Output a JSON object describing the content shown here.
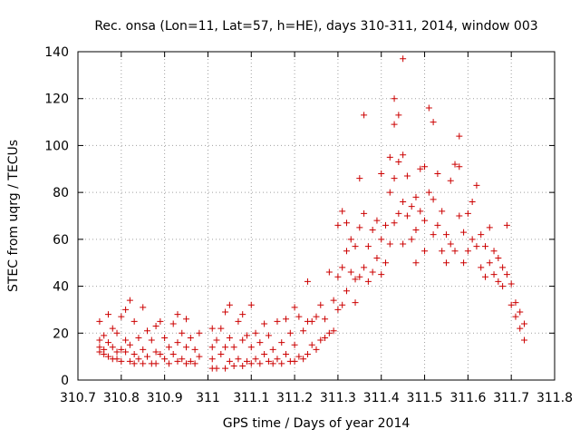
{
  "chart_data": {
    "type": "scatter",
    "title": "Rec. onsa (Lon=11, Lat=57, h=HE), days 310-311, 2014, window 003",
    "xlabel": "GPS time / Days of year 2014",
    "ylabel": "STEC from uqrg / TECUs",
    "xlim": [
      310.7,
      311.8
    ],
    "ylim": [
      0,
      140
    ],
    "grid": true,
    "marker": "+",
    "series_color": "#cc0000",
    "x_ticks": [
      "310.7",
      "310.8",
      "310.9",
      "311",
      "311.1",
      "311.2",
      "311.3",
      "311.4",
      "311.5",
      "311.6",
      "311.7",
      "311.8"
    ],
    "x_tick_values": [
      310.7,
      310.8,
      310.9,
      311.0,
      311.1,
      311.2,
      311.3,
      311.4,
      311.5,
      311.6,
      311.7,
      311.8
    ],
    "y_ticks": [
      "0",
      "20",
      "40",
      "60",
      "80",
      "100",
      "120",
      "140"
    ],
    "y_tick_values": [
      0,
      20,
      40,
      60,
      80,
      100,
      120,
      140
    ],
    "points": [
      [
        310.75,
        25
      ],
      [
        310.75,
        17
      ],
      [
        310.75,
        14
      ],
      [
        310.75,
        12
      ],
      [
        310.76,
        19
      ],
      [
        310.76,
        13
      ],
      [
        310.76,
        11
      ],
      [
        310.77,
        28
      ],
      [
        310.77,
        16
      ],
      [
        310.77,
        10
      ],
      [
        310.78,
        22
      ],
      [
        310.78,
        14
      ],
      [
        310.78,
        9
      ],
      [
        310.79,
        20
      ],
      [
        310.79,
        12
      ],
      [
        310.79,
        9
      ],
      [
        310.8,
        27
      ],
      [
        310.8,
        13
      ],
      [
        310.8,
        8
      ],
      [
        310.81,
        30
      ],
      [
        310.81,
        17
      ],
      [
        310.81,
        12
      ],
      [
        310.82,
        34
      ],
      [
        310.82,
        15
      ],
      [
        310.82,
        8
      ],
      [
        310.83,
        25
      ],
      [
        310.83,
        11
      ],
      [
        310.83,
        7
      ],
      [
        310.84,
        18
      ],
      [
        310.84,
        9
      ],
      [
        310.85,
        31
      ],
      [
        310.85,
        13
      ],
      [
        310.85,
        7
      ],
      [
        310.86,
        21
      ],
      [
        310.86,
        10
      ],
      [
        310.87,
        17
      ],
      [
        310.87,
        7
      ],
      [
        310.88,
        23
      ],
      [
        310.88,
        12
      ],
      [
        310.88,
        7
      ],
      [
        310.89,
        25
      ],
      [
        310.89,
        11
      ],
      [
        310.9,
        18
      ],
      [
        310.9,
        9
      ],
      [
        310.91,
        14
      ],
      [
        310.91,
        7
      ],
      [
        310.92,
        24
      ],
      [
        310.92,
        11
      ],
      [
        310.93,
        28
      ],
      [
        310.93,
        16
      ],
      [
        310.93,
        8
      ],
      [
        310.94,
        20
      ],
      [
        310.94,
        9
      ],
      [
        310.95,
        26
      ],
      [
        310.95,
        14
      ],
      [
        310.95,
        7
      ],
      [
        310.96,
        18
      ],
      [
        310.96,
        8
      ],
      [
        310.97,
        13
      ],
      [
        310.97,
        7
      ],
      [
        310.98,
        20
      ],
      [
        310.98,
        10
      ],
      [
        311.01,
        22
      ],
      [
        311.01,
        14
      ],
      [
        311.01,
        9
      ],
      [
        311.01,
        5
      ],
      [
        311.02,
        17
      ],
      [
        311.02,
        5
      ],
      [
        311.03,
        22
      ],
      [
        311.03,
        11
      ],
      [
        311.04,
        29
      ],
      [
        311.04,
        14
      ],
      [
        311.04,
        5
      ],
      [
        311.05,
        32
      ],
      [
        311.05,
        18
      ],
      [
        311.05,
        8
      ],
      [
        311.06,
        14
      ],
      [
        311.06,
        6
      ],
      [
        311.07,
        25
      ],
      [
        311.07,
        9
      ],
      [
        311.08,
        28
      ],
      [
        311.08,
        17
      ],
      [
        311.08,
        6
      ],
      [
        311.09,
        19
      ],
      [
        311.09,
        8
      ],
      [
        311.1,
        32
      ],
      [
        311.1,
        14
      ],
      [
        311.1,
        7
      ],
      [
        311.11,
        20
      ],
      [
        311.11,
        9
      ],
      [
        311.12,
        16
      ],
      [
        311.12,
        7
      ],
      [
        311.13,
        24
      ],
      [
        311.13,
        11
      ],
      [
        311.14,
        19
      ],
      [
        311.14,
        8
      ],
      [
        311.15,
        13
      ],
      [
        311.15,
        7
      ],
      [
        311.16,
        25
      ],
      [
        311.16,
        9
      ],
      [
        311.17,
        16
      ],
      [
        311.17,
        7
      ],
      [
        311.18,
        26
      ],
      [
        311.18,
        11
      ],
      [
        311.19,
        20
      ],
      [
        311.19,
        8
      ],
      [
        311.2,
        31
      ],
      [
        311.2,
        15
      ],
      [
        311.2,
        8
      ],
      [
        311.21,
        27
      ],
      [
        311.21,
        10
      ],
      [
        311.22,
        21
      ],
      [
        311.22,
        9
      ],
      [
        311.23,
        42
      ],
      [
        311.23,
        25
      ],
      [
        311.23,
        11
      ],
      [
        311.24,
        25
      ],
      [
        311.24,
        15
      ],
      [
        311.25,
        27
      ],
      [
        311.25,
        13
      ],
      [
        311.26,
        32
      ],
      [
        311.26,
        17
      ],
      [
        311.27,
        26
      ],
      [
        311.27,
        18
      ],
      [
        311.28,
        46
      ],
      [
        311.28,
        20
      ],
      [
        311.29,
        34
      ],
      [
        311.29,
        21
      ],
      [
        311.3,
        66
      ],
      [
        311.3,
        44
      ],
      [
        311.3,
        30
      ],
      [
        311.31,
        72
      ],
      [
        311.31,
        48
      ],
      [
        311.31,
        32
      ],
      [
        311.32,
        67
      ],
      [
        311.32,
        55
      ],
      [
        311.32,
        38
      ],
      [
        311.33,
        60
      ],
      [
        311.33,
        46
      ],
      [
        311.34,
        57
      ],
      [
        311.34,
        43
      ],
      [
        311.34,
        33
      ],
      [
        311.35,
        86
      ],
      [
        311.35,
        65
      ],
      [
        311.35,
        44
      ],
      [
        311.36,
        113
      ],
      [
        311.36,
        71
      ],
      [
        311.36,
        48
      ],
      [
        311.37,
        57
      ],
      [
        311.37,
        42
      ],
      [
        311.38,
        64
      ],
      [
        311.38,
        46
      ],
      [
        311.39,
        68
      ],
      [
        311.39,
        52
      ],
      [
        311.4,
        88
      ],
      [
        311.4,
        60
      ],
      [
        311.4,
        45
      ],
      [
        311.41,
        66
      ],
      [
        311.41,
        50
      ],
      [
        311.42,
        95
      ],
      [
        311.42,
        80
      ],
      [
        311.42,
        58
      ],
      [
        311.43,
        120
      ],
      [
        311.43,
        109
      ],
      [
        311.43,
        86
      ],
      [
        311.43,
        67
      ],
      [
        311.44,
        113
      ],
      [
        311.44,
        93
      ],
      [
        311.44,
        71
      ],
      [
        311.45,
        137
      ],
      [
        311.45,
        96
      ],
      [
        311.45,
        76
      ],
      [
        311.45,
        58
      ],
      [
        311.46,
        87
      ],
      [
        311.46,
        70
      ],
      [
        311.47,
        74
      ],
      [
        311.47,
        60
      ],
      [
        311.48,
        78
      ],
      [
        311.48,
        64
      ],
      [
        311.48,
        50
      ],
      [
        311.49,
        90
      ],
      [
        311.49,
        72
      ],
      [
        311.5,
        91
      ],
      [
        311.5,
        68
      ],
      [
        311.5,
        55
      ],
      [
        311.51,
        116
      ],
      [
        311.51,
        80
      ],
      [
        311.52,
        110
      ],
      [
        311.52,
        77
      ],
      [
        311.52,
        62
      ],
      [
        311.53,
        88
      ],
      [
        311.53,
        66
      ],
      [
        311.54,
        72
      ],
      [
        311.54,
        55
      ],
      [
        311.55,
        62
      ],
      [
        311.55,
        50
      ],
      [
        311.56,
        85
      ],
      [
        311.56,
        58
      ],
      [
        311.57,
        92
      ],
      [
        311.57,
        55
      ],
      [
        311.58,
        104
      ],
      [
        311.58,
        91
      ],
      [
        311.58,
        70
      ],
      [
        311.59,
        63
      ],
      [
        311.59,
        50
      ],
      [
        311.6,
        71
      ],
      [
        311.6,
        55
      ],
      [
        311.61,
        76
      ],
      [
        311.61,
        60
      ],
      [
        311.62,
        83
      ],
      [
        311.62,
        57
      ],
      [
        311.63,
        62
      ],
      [
        311.63,
        48
      ],
      [
        311.64,
        57
      ],
      [
        311.64,
        44
      ],
      [
        311.65,
        65
      ],
      [
        311.65,
        50
      ],
      [
        311.66,
        55
      ],
      [
        311.66,
        45
      ],
      [
        311.67,
        52
      ],
      [
        311.67,
        42
      ],
      [
        311.68,
        48
      ],
      [
        311.68,
        40
      ],
      [
        311.69,
        66
      ],
      [
        311.69,
        45
      ],
      [
        311.7,
        41
      ],
      [
        311.7,
        32
      ],
      [
        311.71,
        33
      ],
      [
        311.71,
        27
      ],
      [
        311.72,
        29
      ],
      [
        311.72,
        22
      ],
      [
        311.73,
        24
      ],
      [
        311.73,
        17
      ]
    ]
  }
}
